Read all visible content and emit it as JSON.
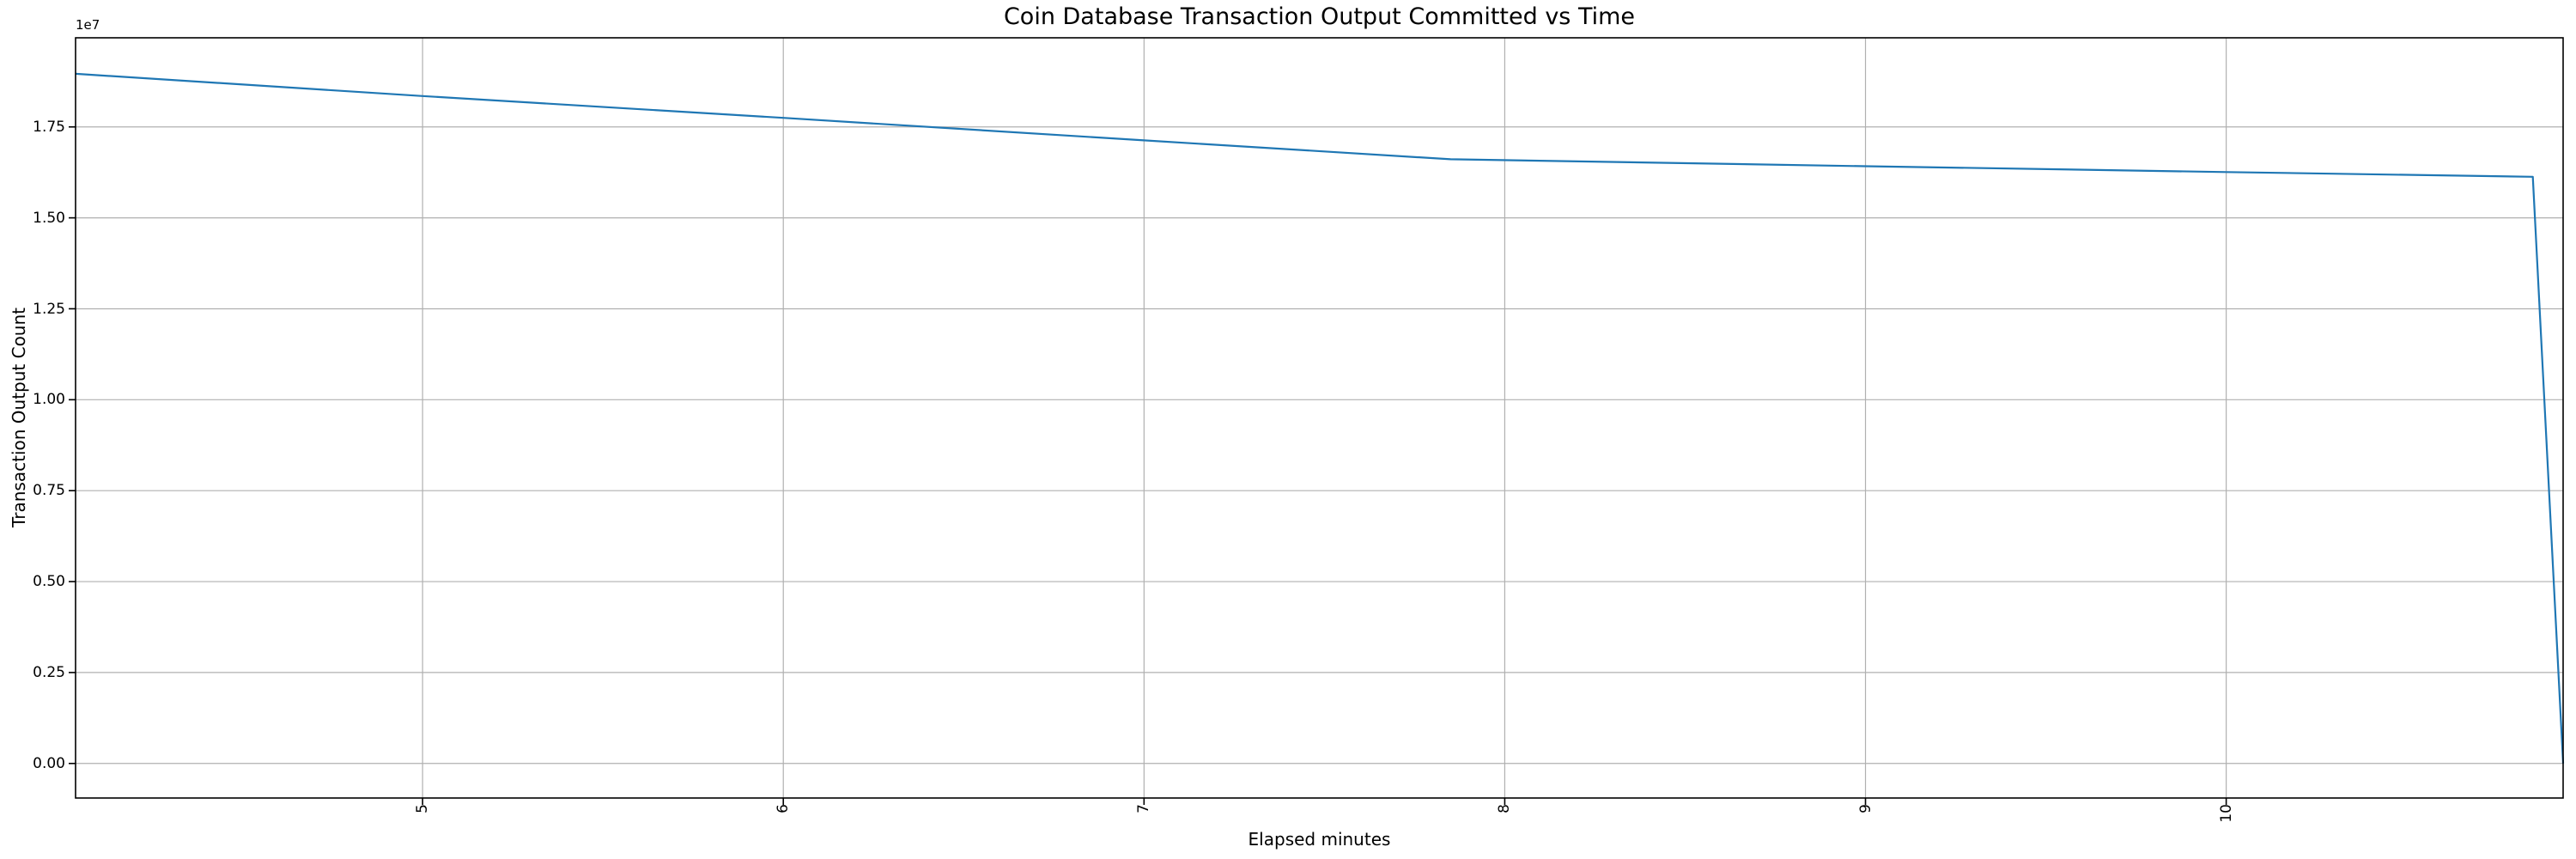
{
  "chart_data": {
    "type": "line",
    "title": "Coin Database Transaction Output Committed vs Time",
    "xlabel": "Elapsed minutes",
    "ylabel": "Transaction Output Count",
    "y_offset_label": "1e7",
    "x": [
      4.038,
      5.0,
      6.0,
      7.0,
      7.85,
      9.0,
      10.0,
      10.85,
      10.934
    ],
    "y": [
      18960000,
      18350000,
      17750000,
      17130000,
      16610000,
      16420000,
      16260000,
      16130000,
      0
    ],
    "xlim": [
      4.038,
      10.934
    ],
    "ylim": [
      -950000,
      19950000
    ],
    "xticks": [
      5,
      6,
      7,
      8,
      9,
      10
    ],
    "xtick_labels": [
      "5",
      "6",
      "7",
      "8",
      "9",
      "10"
    ],
    "xtick_rotation": 90,
    "yticks": [
      0,
      2500000,
      5000000,
      7500000,
      10000000,
      12500000,
      15000000,
      17500000
    ],
    "ytick_labels": [
      "0.00",
      "0.25",
      "0.50",
      "0.75",
      "1.00",
      "1.25",
      "1.50",
      "1.75"
    ],
    "grid": true,
    "legend_position": "none",
    "colors": {
      "line": "#1f77b4",
      "grid": "#b0b0b0",
      "spine": "#000000",
      "background": "#ffffff",
      "text": "#000000"
    }
  }
}
